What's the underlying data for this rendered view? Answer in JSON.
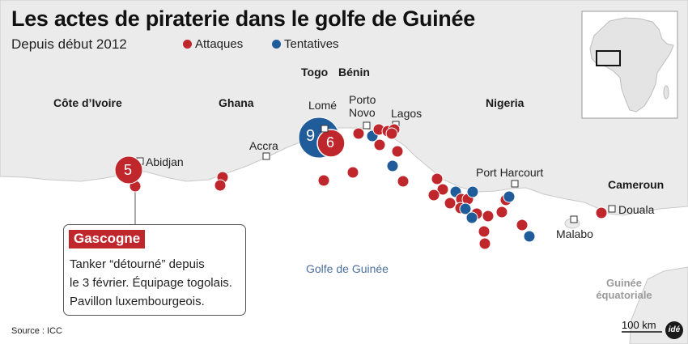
{
  "title": "Les actes de piraterie dans le golfe de Guinée",
  "subtitle": "Depuis début 2012",
  "legend": {
    "attacks": {
      "label": "Attaques",
      "color": "#c0272d"
    },
    "attempts": {
      "label": "Tentatives",
      "color": "#1f5c99"
    }
  },
  "countries": {
    "cote_divoire": "Côte d’Ivoire",
    "ghana": "Ghana",
    "togo": "Togo",
    "benin": "Bénin",
    "nigeria": "Nigeria",
    "cameroun": "Cameroun",
    "guinee_equatoriale": "Guinée équatoriale"
  },
  "cities": {
    "abidjan": "Abidjan",
    "accra": "Accra",
    "lome": "Lomé",
    "porto_novo": "Porto Novo",
    "lagos": "Lagos",
    "port_harcourt": "Port Harcourt",
    "douala": "Douala",
    "malabo": "Malabo"
  },
  "sea_label": "Golfe de Guinée",
  "clusters": {
    "abidjan_attacks": "5",
    "lome_attempts": "9",
    "lome_attacks": "6"
  },
  "callout": {
    "ship": "Gascogne",
    "line1": "Tanker “détourné” depuis",
    "line2": "le 3 février. Équipage togolais.",
    "line3": "Pavillon luxembourgeois."
  },
  "source": "Source : ICC",
  "scale": "100 km",
  "logo": "idé",
  "colors": {
    "land": "#ebebeb",
    "sea": "#ffffff",
    "attack": "#c0272d",
    "attempt": "#1f5c99"
  }
}
